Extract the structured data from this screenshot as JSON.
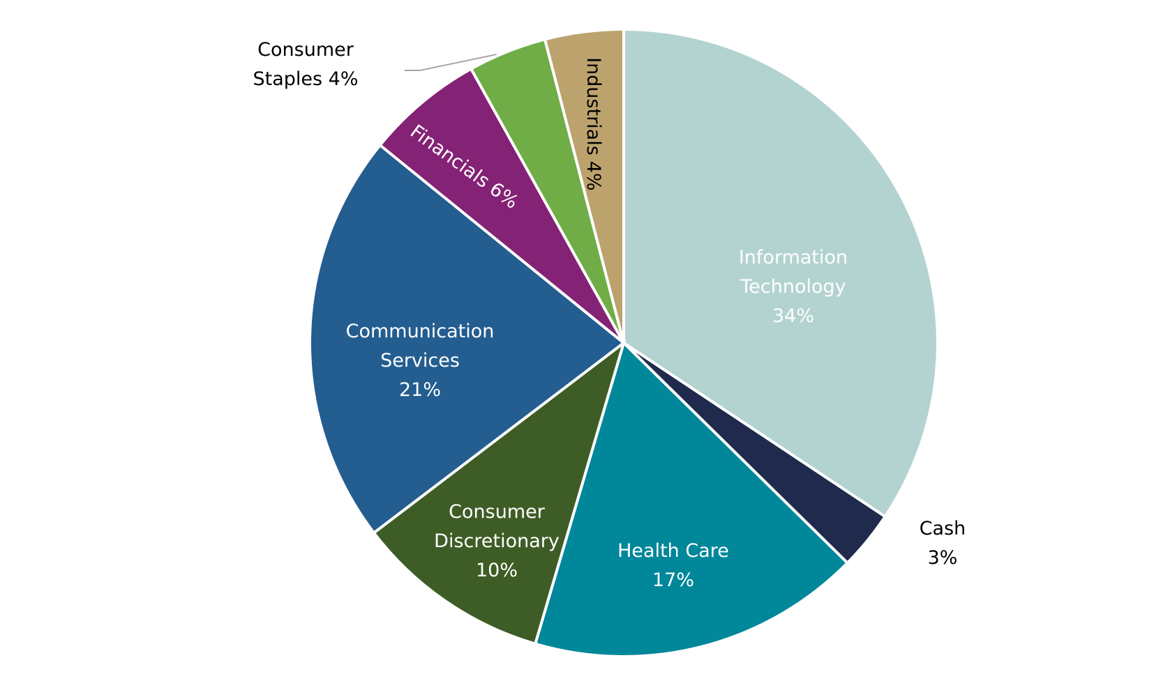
{
  "chart_data": {
    "type": "pie",
    "categories": [
      "Information Technology",
      "Cash",
      "Health Care",
      "Consumer Discretionary",
      "Communication Services",
      "Financials",
      "Consumer Staples",
      "Industrials"
    ],
    "values": [
      34,
      3,
      17,
      10,
      21,
      6,
      4,
      4
    ],
    "value_labels": [
      "34%",
      "3%",
      "17%",
      "10%",
      "21%",
      "6%",
      "4%",
      "4%"
    ],
    "colors": [
      "#b3d3d0",
      "#1f2a4d",
      "#00879a",
      "#3e5d26",
      "#245d8f",
      "#842275",
      "#70ad47",
      "#bca36e"
    ]
  }
}
